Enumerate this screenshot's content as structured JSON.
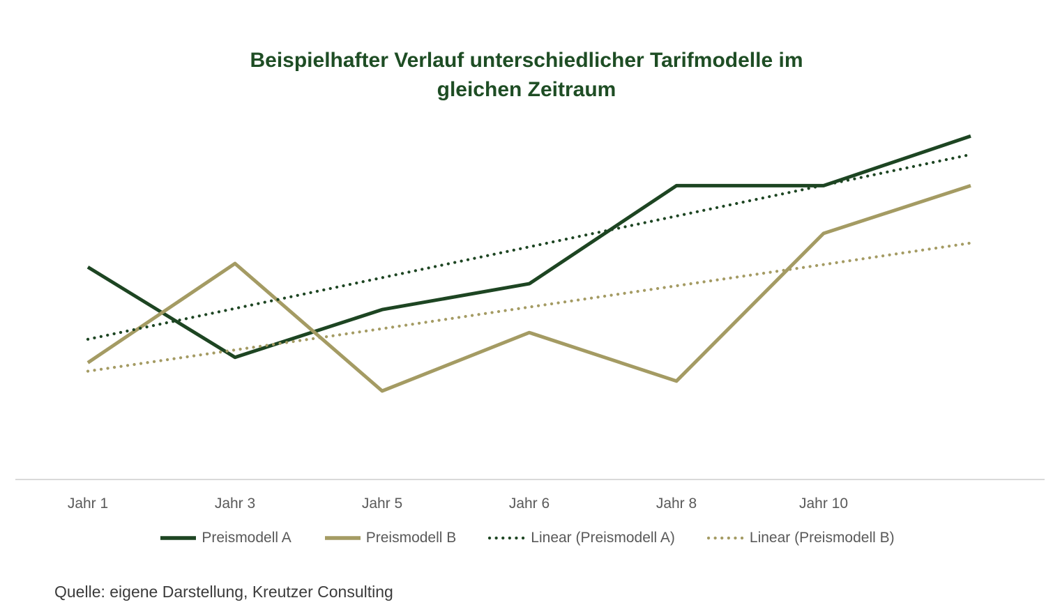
{
  "heading": {
    "line1": "Beispielhafter Verlauf unterschiedlicher Tarifmodelle im",
    "line2": "gleichen Zeitraum"
  },
  "source": "Quelle: eigene Darstellung, Kreutzer Consulting",
  "colors": {
    "title_green": "#1e4d24",
    "dark_green": "#1d4522",
    "olive": "#a49b63",
    "axis_line": "#d9d9d9",
    "label_gray": "#595959",
    "source_text": "#3b3b3b",
    "background": "#ffffff"
  },
  "chart_data": {
    "type": "line",
    "title": "Beispielhafter Verlauf unterschiedlicher Tarifmodelle im gleichen Zeitraum",
    "x_labels": [
      "Jahr 1",
      "Jahr 3",
      "Jahr 5",
      "Jahr 6",
      "Jahr 8",
      "Jahr 10"
    ],
    "x_points": 7,
    "unlabeled_trailing_points": 1,
    "y_axis_visible": false,
    "grid": false,
    "ylim": [
      0,
      100
    ],
    "legend_position": "bottom",
    "series": [
      {
        "name": "Preismodell A",
        "role": "data",
        "line_style": "solid",
        "color": "#1d4522",
        "values": [
          60,
          34.5,
          48,
          55.3,
          83,
          83,
          97
        ]
      },
      {
        "name": "Preismodell B",
        "role": "data",
        "line_style": "solid",
        "color": "#a49b63",
        "values": [
          33,
          61,
          25,
          41.5,
          27.8,
          69.5,
          83
        ]
      },
      {
        "name": "Linear (Preismodell A)",
        "role": "trendline",
        "line_style": "dotted",
        "color": "#1d4522",
        "values": [
          39.6,
          48.3,
          57,
          65.7,
          74.4,
          83.1,
          91.8
        ]
      },
      {
        "name": "Linear (Preismodell B)",
        "role": "trendline",
        "line_style": "dotted",
        "color": "#a49b63",
        "values": [
          30.6,
          36.6,
          42.6,
          48.7,
          54.7,
          60.7,
          66.8
        ]
      }
    ]
  }
}
